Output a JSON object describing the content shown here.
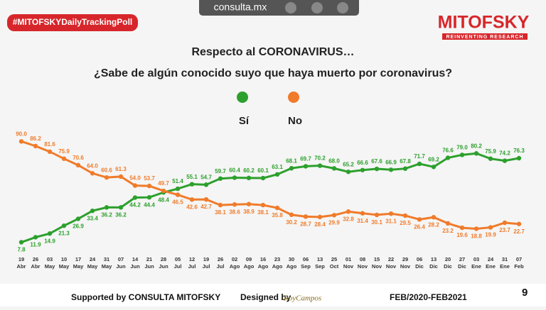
{
  "header": {
    "hashtag": "#MITOFSKYDailyTrackingPoll",
    "site": "consulta.mx",
    "brand": "MITOFSKY",
    "tagline": "REINVENTING RESEARCH"
  },
  "chart_data": {
    "type": "line",
    "title": "Respecto al CORONAVIRUS…",
    "subtitle": "¿Sabe de algún conocido suyo que haya muerto por coronavirus?",
    "categories": [
      "19 Abr",
      "26 Abr",
      "03 May",
      "10 May",
      "17 May",
      "24 May",
      "31 May",
      "07 Jun",
      "14 Jun",
      "21 Jun",
      "28 Jun",
      "05 Jul",
      "12 Jul",
      "19 Jul",
      "26 Jul",
      "02 Ago",
      "09 Ago",
      "16 Ago",
      "23 Ago",
      "30 Ago",
      "06 Sep",
      "13 Sep",
      "25 Oct",
      "01 Nov",
      "08 Nov",
      "15 Nov",
      "22 Nov",
      "29 Nov",
      "06 Dic",
      "13 Dic",
      "20 Dic",
      "27 Dic",
      "03 Ene",
      "24 Ene",
      "31 Ene",
      "07 Feb"
    ],
    "ylim": [
      0,
      100
    ],
    "series": [
      {
        "name": "Sí",
        "color": "#2ca02c",
        "values": [
          7.8,
          11.9,
          14.9,
          21.3,
          26.9,
          33.4,
          36.2,
          36.2,
          44.2,
          44.4,
          48.4,
          51.4,
          55.1,
          54.7,
          59.7,
          60.4,
          60.2,
          60.1,
          63.1,
          68.1,
          69.7,
          70.2,
          68.0,
          65.2,
          66.6,
          67.6,
          66.9,
          67.8,
          71.7,
          69.2,
          76.6,
          79.0,
          80.2,
          75.9,
          74.2,
          76.3
        ],
        "value_labels": [
          "7.8",
          "11.9",
          "14.9",
          "21.3",
          "26.9",
          "33.4",
          "36.2",
          "36.2",
          "44.2",
          "44.4",
          "48.4",
          "51.4",
          "55.1",
          "54.7",
          "59.7",
          "60.4",
          "60.2",
          "60.1",
          "63.1",
          "68.1",
          "69.7",
          "70.2",
          "68.0",
          "65.2",
          "66.6",
          "67.6",
          "66.9",
          "67.8",
          "71.7",
          "69.2",
          "76.6",
          "79.0",
          "80.2",
          "75.9",
          "74.2",
          "76.3"
        ]
      },
      {
        "name": "No",
        "color": "#f07b2a",
        "values": [
          90.0,
          86.2,
          81.6,
          75.9,
          70.6,
          64.0,
          60.6,
          61.3,
          54.0,
          53.7,
          49.7,
          46.5,
          42.6,
          42.7,
          38.1,
          38.6,
          38.9,
          38.1,
          35.8,
          30.2,
          28.7,
          28.4,
          29.9,
          32.8,
          31.4,
          30.1,
          31.1,
          29.5,
          26.4,
          28.2,
          23.2,
          19.6,
          18.8,
          19.9,
          23.7,
          22.7
        ],
        "value_labels": [
          "90.0",
          "86.2",
          "81.6",
          "75.9",
          "70.6",
          "64.0",
          "60.6",
          "61.3",
          "54.0",
          "53.7",
          "49.7",
          "46.5",
          "42.6",
          "42.7",
          "38.1",
          "38.6",
          "38.9",
          "38.1",
          "35.8",
          "30.2",
          "28.7",
          "28.4",
          "29.9",
          "32.8",
          "31.4",
          "30.1",
          "31.1",
          "29.5",
          "26.4",
          "28.2",
          "23.2",
          "19.6",
          "18.8",
          "19.9",
          "23.7",
          "22.7"
        ]
      }
    ]
  },
  "footer": {
    "supported": "Supported by  CONSULTA  MITOFSKY",
    "designed": "Designed by",
    "designer": "RoyCampos",
    "period": "FEB/2020-FEB2021",
    "page": "9"
  }
}
